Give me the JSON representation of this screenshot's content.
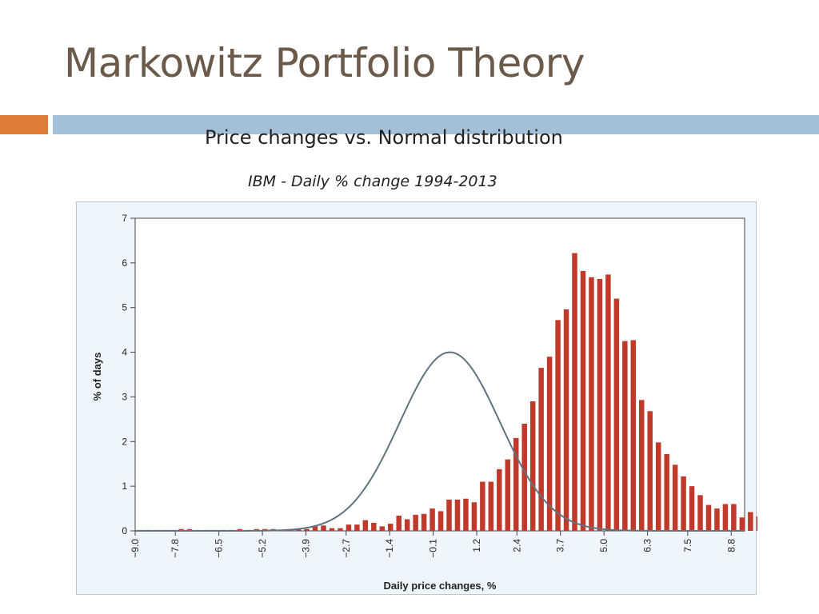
{
  "slide": {
    "title": "Markowitz Portfolio Theory",
    "subtitle": "Price changes vs. Normal distribution",
    "caption": "IBM - Daily % change 1994-2013",
    "accent_orange": "#e07b39",
    "accent_blue": "#a4bfd8",
    "title_color": "#6b5a4a"
  },
  "chart_data": {
    "type": "bar",
    "xlabel": "Daily price changes, %",
    "ylabel": "% of days",
    "ylim": [
      0,
      7
    ],
    "xlim": [
      -9.0,
      9.2
    ],
    "yticks": [
      0,
      1,
      2,
      3,
      4,
      5,
      6,
      7
    ],
    "xticks": [
      -9.0,
      -7.8,
      -6.5,
      -5.2,
      -3.9,
      -2.7,
      -1.4,
      -0.1,
      1.2,
      2.4,
      3.7,
      5.0,
      6.3,
      7.5,
      8.8
    ],
    "xtick_labels": [
      "−9.0",
      "−7.8",
      "−6.5",
      "−5.2",
      "−3.9",
      "−2.7",
      "−1.4",
      "−0.1",
      "1.2",
      "2.4",
      "3.7",
      "5.0",
      "6.3",
      "7.5",
      "8.8"
    ],
    "bar_color": "#c0392b",
    "curve_color": "#5f7480",
    "grid": false,
    "series": [
      {
        "kind": "bars",
        "x_start": -9.0,
        "bin_width": 0.25,
        "values": [
          0.02,
          0.02,
          0.02,
          0.02,
          0.02,
          0.04,
          0.04,
          0.02,
          0.02,
          0.02,
          0.02,
          0.02,
          0.04,
          0.02,
          0.04,
          0.04,
          0.04,
          0.02,
          0.02,
          0.04,
          0.04,
          0.1,
          0.12,
          0.06,
          0.06,
          0.14,
          0.14,
          0.24,
          0.18,
          0.1,
          0.16,
          0.34,
          0.26,
          0.36,
          0.38,
          0.5,
          0.44,
          0.7,
          0.7,
          0.72,
          0.64,
          1.1,
          1.1,
          1.38,
          1.6,
          2.08,
          2.4,
          2.9,
          3.65,
          3.9,
          4.72,
          4.96,
          6.22,
          5.82,
          5.68,
          5.64,
          5.74,
          5.2,
          4.25,
          4.27,
          2.93,
          2.68,
          1.98,
          1.72,
          1.48,
          1.22,
          1.0,
          0.8,
          0.58,
          0.5,
          0.6,
          0.6,
          0.3,
          0.42,
          0.32,
          0.26,
          0.22,
          0.14,
          0.26,
          0.14,
          0.12,
          0.04,
          0.08,
          0.06,
          0.04,
          0.06,
          0.02,
          0.02,
          0.02,
          0.06,
          0.04,
          0.02,
          0.02,
          0.02,
          0.04,
          0.04,
          0.06,
          0.02,
          0.02,
          0.02,
          0.02,
          0.02,
          0.02,
          0.02,
          0.02,
          0.02,
          0.02,
          0.02,
          0.02,
          0.02,
          0.02,
          0.02,
          0.02,
          0.02,
          0.04
        ]
      },
      {
        "kind": "normal-curve",
        "mean": 0.4,
        "std": 1.5,
        "peak": 4.0
      }
    ]
  }
}
